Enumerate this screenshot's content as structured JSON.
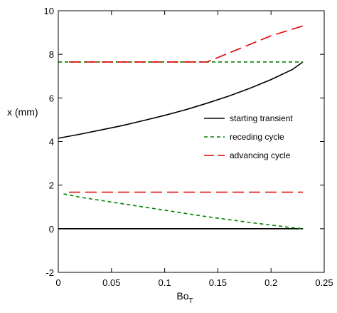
{
  "chart_data": {
    "type": "line",
    "title": "",
    "xlabel": "Bo",
    "xlabel_subscript": "T",
    "ylabel": "x (mm)",
    "xlim": [
      0,
      0.25
    ],
    "ylim": [
      -2,
      10
    ],
    "x_ticks": [
      0,
      0.05,
      0.1,
      0.15,
      0.2,
      0.25
    ],
    "x_tick_labels": [
      "0",
      "0.05",
      "0.1",
      "0.15",
      "0.2",
      "0.25"
    ],
    "y_ticks": [
      -2,
      0,
      2,
      4,
      6,
      8,
      10
    ],
    "y_tick_labels": [
      "-2",
      "0",
      "2",
      "4",
      "6",
      "8",
      "10"
    ],
    "grid": false,
    "legend_position": "right-middle",
    "series": [
      {
        "name": "starting transient",
        "color": "#000000",
        "dash": "solid",
        "segments": [
          {
            "x": [
              0,
              0.02,
              0.04,
              0.06,
              0.08,
              0.1,
              0.12,
              0.14,
              0.16,
              0.18,
              0.2,
              0.22,
              0.23
            ],
            "y": [
              4.15,
              4.33,
              4.53,
              4.73,
              4.96,
              5.2,
              5.46,
              5.76,
              6.08,
              6.44,
              6.84,
              7.3,
              7.65
            ]
          },
          {
            "x": [
              0,
              0.23
            ],
            "y": [
              0,
              0
            ]
          }
        ]
      },
      {
        "name": "receding cycle",
        "color": "#008000",
        "dash": "short",
        "segments": [
          {
            "x": [
              0,
              0.23
            ],
            "y": [
              7.65,
              7.65
            ]
          },
          {
            "x": [
              0.005,
              0.02,
              0.04,
              0.06,
              0.08,
              0.1,
              0.12,
              0.14,
              0.16,
              0.18,
              0.2,
              0.22,
              0.23
            ],
            "y": [
              1.6,
              1.45,
              1.3,
              1.15,
              1.0,
              0.85,
              0.7,
              0.55,
              0.42,
              0.29,
              0.17,
              0.05,
              0.0
            ]
          }
        ]
      },
      {
        "name": "advancing cycle",
        "color": "#e00000",
        "dash": "long",
        "segments": [
          {
            "x": [
              0.01,
              0.14,
              0.16,
              0.18,
              0.2,
              0.22,
              0.23
            ],
            "y": [
              7.65,
              7.65,
              8.05,
              8.45,
              8.85,
              9.15,
              9.3
            ]
          },
          {
            "x": [
              0.01,
              0.23
            ],
            "y": [
              1.68,
              1.68
            ]
          }
        ]
      }
    ]
  }
}
